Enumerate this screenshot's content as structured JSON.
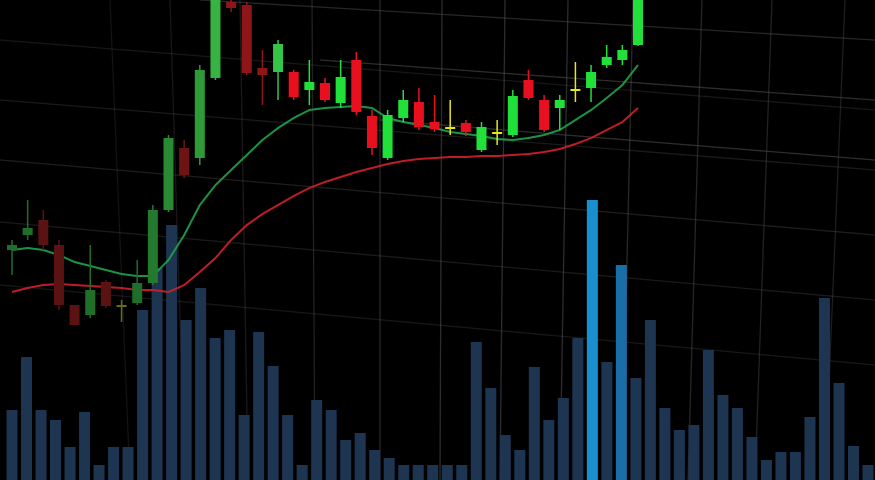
{
  "chart_data": [
    {
      "type": "candlestick",
      "categories": [
        null,
        null,
        null,
        null,
        null,
        null,
        null,
        null,
        null,
        null,
        null,
        null,
        null,
        null,
        null,
        null,
        null,
        null,
        null,
        null,
        null,
        null,
        null,
        null,
        null,
        null,
        null,
        null,
        null,
        null,
        null,
        null,
        null,
        null,
        null,
        null,
        null,
        null,
        null,
        null,
        null
      ],
      "open": [
        230,
        245,
        260,
        235,
        175,
        165,
        198,
        175,
        177,
        197,
        270,
        332,
        322,
        402,
        478,
        475,
        412,
        408,
        408,
        390,
        397,
        377,
        420,
        364,
        322,
        362,
        378,
        358,
        353,
        357,
        330,
        348,
        345,
        400,
        380,
        372,
        391,
        392,
        415,
        420,
        435
      ],
      "high": [
        240,
        280,
        270,
        240,
        175,
        235,
        200,
        180,
        220,
        275,
        345,
        340,
        415,
        480,
        480,
        478,
        430,
        440,
        410,
        420,
        402,
        420,
        428,
        370,
        370,
        390,
        392,
        385,
        380,
        360,
        358,
        360,
        390,
        410,
        385,
        385,
        418,
        415,
        435,
        435,
        480
      ],
      "low": [
        205,
        240,
        230,
        170,
        155,
        162,
        172,
        158,
        175,
        195,
        268,
        302,
        315,
        400,
        468,
        405,
        375,
        380,
        380,
        375,
        378,
        372,
        365,
        325,
        320,
        358,
        350,
        348,
        345,
        344,
        328,
        335,
        343,
        380,
        348,
        350,
        378,
        378,
        412,
        415,
        434
      ],
      "close": [
        235,
        252,
        235,
        175,
        155,
        190,
        174,
        175,
        197,
        270,
        342,
        305,
        410,
        480,
        472,
        407,
        405,
        436,
        383,
        398,
        380,
        403,
        368,
        332,
        365,
        380,
        353,
        351,
        352,
        348,
        353,
        347,
        384,
        382,
        350,
        380,
        391,
        408,
        423,
        430,
        480
      ],
      "colors": [
        "#1f6e2a",
        "#1f6e2a",
        "#5a1212",
        "#5a1212",
        "#5a1212",
        "#1f6e2a",
        "#5a1212",
        "#6b6b14",
        "#1f6e2a",
        "#237a2e",
        "#2a8a34",
        "#6e1414",
        "#2f9a38",
        "#36b443",
        "#8e1518",
        "#8e1518",
        "#8e1518",
        "#34c447",
        "#e8101e",
        "#22e03a",
        "#e8101e",
        "#22e03a",
        "#e8101e",
        "#e8101e",
        "#22e03a",
        "#22e03a",
        "#e8101e",
        "#e8101e",
        "#e6e619",
        "#e8101e",
        "#22e03a",
        "#e6e619",
        "#22e03a",
        "#e8101e",
        "#e8101e",
        "#22e03a",
        "#e6e619",
        "#22e03a",
        "#22e03a",
        "#22e03a",
        "#22e03a"
      ],
      "series": [
        {
          "color": "#1fa34a",
          "values": [
            230,
            232,
            230,
            225,
            218,
            214,
            210,
            206,
            204,
            204,
            220,
            245,
            275,
            295,
            310,
            325,
            340,
            352,
            362,
            370,
            372,
            373,
            374,
            372,
            362,
            358,
            355,
            352,
            348,
            346,
            344,
            341,
            340,
            342,
            345,
            350,
            360,
            370,
            382,
            395,
            415
          ]
        },
        {
          "color": "#d0202a",
          "values": [
            188,
            192,
            195,
            196,
            195,
            194,
            193,
            192,
            190,
            190,
            188,
            195,
            208,
            222,
            240,
            255,
            266,
            275,
            284,
            292,
            298,
            303,
            308,
            312,
            316,
            319,
            321,
            322,
            323,
            323,
            324,
            324,
            325,
            326,
            328,
            331,
            336,
            342,
            350,
            358,
            372
          ]
        }
      ],
      "ylim": [
        0,
        480
      ]
    },
    {
      "type": "bar",
      "categories": [
        null,
        null,
        null,
        null,
        null,
        null,
        null,
        null,
        null,
        null,
        null,
        null,
        null,
        null,
        null,
        null,
        null,
        null,
        null,
        null,
        null,
        null,
        null,
        null,
        null,
        null,
        null,
        null,
        null,
        null,
        null,
        null,
        null,
        null,
        null,
        null,
        null,
        null,
        null,
        null,
        null,
        null,
        null,
        null,
        null,
        null,
        null,
        null,
        null,
        null,
        null,
        null,
        null,
        null,
        null,
        null,
        null,
        null,
        null,
        null
      ],
      "values": [
        70,
        123,
        70,
        60,
        33,
        68,
        15,
        33,
        33,
        170,
        212,
        255,
        160,
        192,
        142,
        150,
        65,
        148,
        114,
        65,
        15,
        80,
        70,
        40,
        47,
        30,
        22,
        15,
        15,
        15,
        15,
        15,
        138,
        92,
        45,
        30,
        113,
        60,
        82,
        142,
        280,
        118,
        215,
        102,
        160,
        72,
        50,
        55,
        130,
        85,
        72,
        43,
        20,
        28,
        28,
        63,
        182,
        97,
        34,
        15
      ],
      "colors": [
        "#1d3550",
        "#1d3550",
        "#1d3550",
        "#1d3550",
        "#1d3550",
        "#1d3550",
        "#1d3550",
        "#1d3550",
        "#1d3550",
        "#1d3550",
        "#1d3550",
        "#1d3550",
        "#1d3550",
        "#1d3550",
        "#1d3550",
        "#1d3550",
        "#1d3550",
        "#1d3550",
        "#1d3550",
        "#1d3550",
        "#1d3550",
        "#1d3550",
        "#1d3550",
        "#1d3550",
        "#1d3550",
        "#1d3550",
        "#1d3550",
        "#1d3550",
        "#1d3550",
        "#1d3550",
        "#1d3550",
        "#1d3550",
        "#1d3550",
        "#1d3550",
        "#1d3550",
        "#1d3550",
        "#1d3550",
        "#1d3550",
        "#1d3550",
        "#1d3550",
        "#1a8fd0",
        "#1d3550",
        "#1a6ea8",
        "#1d3550",
        "#1d3550",
        "#1d3550",
        "#1d3550",
        "#1d3550",
        "#1d3550",
        "#1d3550",
        "#1d3550",
        "#1d3550",
        "#1d3550",
        "#1d3550",
        "#1d3550",
        "#1d3550",
        "#1d3550",
        "#1d3550",
        "#1d3550",
        "#1d3550"
      ],
      "ylim": [
        0,
        480
      ]
    }
  ]
}
